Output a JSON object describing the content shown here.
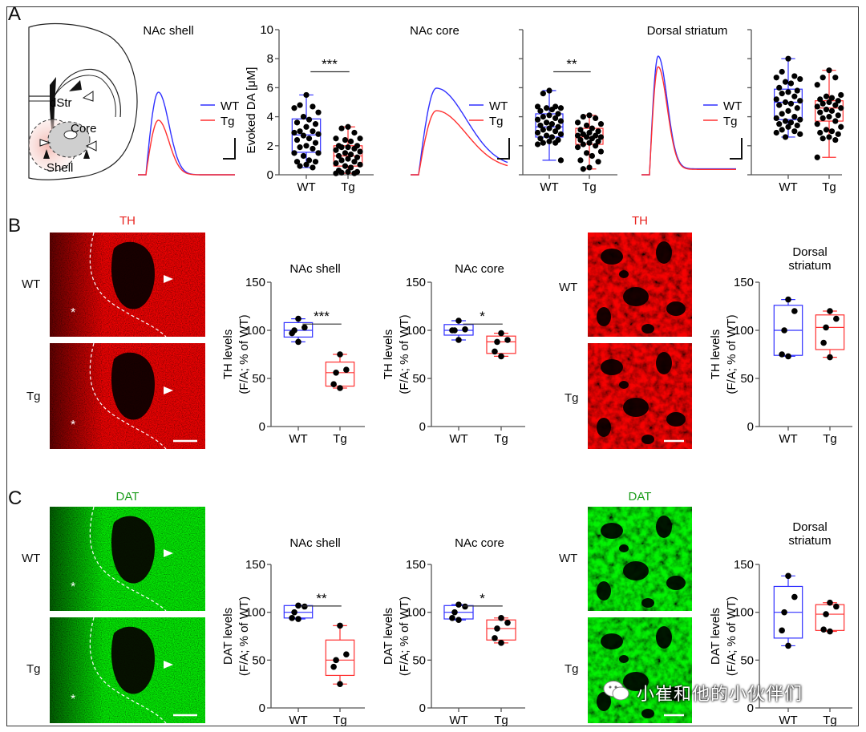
{
  "panels": {
    "A": {
      "letter": "A",
      "diagram": {
        "labels": [
          "dStr",
          "Core",
          "Shell"
        ]
      },
      "traces": [
        {
          "title": "NAc shell",
          "legend": [
            "WT",
            "Tg"
          ],
          "relative_peak": {
            "WT": 1.0,
            "Tg": 0.66
          },
          "decay": "fast"
        },
        {
          "title": "NAc core",
          "legend": [
            "WT",
            "Tg"
          ],
          "relative_peak": {
            "WT": 1.0,
            "Tg": 0.74
          },
          "decay": "slow"
        },
        {
          "title": "Dorsal striatum",
          "legend": [
            "WT",
            "Tg"
          ],
          "relative_peak": {
            "WT": 1.0,
            "Tg": 0.91
          },
          "decay": "fast"
        }
      ]
    },
    "B": {
      "letter": "B",
      "stain": "TH",
      "stain_color": "#e8231f",
      "rows": [
        "WT",
        "Tg"
      ],
      "rows_right": [
        "WT",
        "Tg"
      ]
    },
    "C": {
      "letter": "C",
      "stain": "DAT",
      "stain_color": "#1e9e1e",
      "rows": [
        "WT",
        "Tg"
      ],
      "rows_right": [
        "WT",
        "Tg"
      ]
    }
  },
  "colors": {
    "WT": "#3030ff",
    "Tg": "#ff3030",
    "points": "#000000"
  },
  "watermark": "小崔和他的小伙伴们",
  "chart_data": [
    {
      "type": "box",
      "panel": "A",
      "title": "",
      "ylabel": "Evoked DA [μM]",
      "ylim": [
        0,
        10
      ],
      "yticks": [
        0,
        2,
        4,
        6,
        8,
        10
      ],
      "ytick_labels": [
        "0",
        "2",
        "4",
        "6",
        "8",
        "10"
      ],
      "categories": [
        "WT",
        "Tg"
      ],
      "significance": "***",
      "series": [
        {
          "name": "WT",
          "box": [
            0.5,
            1.55,
            2.75,
            3.85,
            5.5
          ],
          "points": [
            5.5,
            4.8,
            4.7,
            4.6,
            4.3,
            4.0,
            3.8,
            3.6,
            3.5,
            3.3,
            3.0,
            3.0,
            2.9,
            2.8,
            2.7,
            2.5,
            2.4,
            2.2,
            2.0,
            1.9,
            1.8,
            1.5,
            1.5,
            1.3,
            1.0,
            0.9,
            0.9,
            0.7,
            0.6,
            0.5
          ]
        },
        {
          "name": "Tg",
          "box": [
            0.1,
            0.6,
            1.3,
            2.0,
            3.3
          ],
          "points": [
            3.3,
            3.2,
            2.9,
            2.5,
            2.5,
            2.4,
            2.3,
            2.0,
            2.0,
            1.9,
            1.9,
            1.8,
            1.7,
            1.6,
            1.5,
            1.4,
            1.3,
            1.2,
            1.1,
            1.0,
            0.9,
            0.8,
            0.7,
            0.6,
            0.5,
            0.3,
            0.2,
            0.2,
            0.15,
            0.1,
            0.1
          ]
        }
      ]
    },
    {
      "type": "box",
      "panel": "A",
      "title": "",
      "ylabel": "",
      "ylim": [
        0,
        10
      ],
      "yticks": [
        0,
        2,
        4,
        6,
        8,
        10
      ],
      "ytick_labels": [],
      "categories": [
        "WT",
        "Tg"
      ],
      "significance": "**",
      "series": [
        {
          "name": "WT",
          "box": [
            1.0,
            2.6,
            3.3,
            4.2,
            5.8
          ],
          "points": [
            5.8,
            5.6,
            4.7,
            4.7,
            4.6,
            4.6,
            4.5,
            4.4,
            4.2,
            4.1,
            4.0,
            3.9,
            3.8,
            3.7,
            3.6,
            3.5,
            3.4,
            3.3,
            3.2,
            3.1,
            3.0,
            2.9,
            2.8,
            2.7,
            2.6,
            2.5,
            2.4,
            2.3,
            2.2,
            2.2,
            2.1,
            1.0
          ]
        },
        {
          "name": "Tg",
          "box": [
            0.4,
            2.1,
            2.6,
            3.2,
            4.1
          ],
          "points": [
            4.1,
            4.0,
            3.9,
            3.6,
            3.5,
            3.4,
            3.2,
            3.1,
            3.0,
            2.9,
            2.8,
            2.7,
            2.7,
            2.6,
            2.6,
            2.5,
            2.4,
            2.3,
            2.2,
            2.1,
            2.0,
            1.9,
            1.6,
            1.5,
            1.3,
            1.0,
            0.9,
            0.5,
            0.4
          ]
        }
      ]
    },
    {
      "type": "box",
      "panel": "A",
      "title": "",
      "ylabel": "",
      "ylim": [
        0,
        10
      ],
      "yticks": [
        0,
        2,
        4,
        6,
        8,
        10
      ],
      "ytick_labels": [],
      "categories": [
        "WT",
        "Tg"
      ],
      "significance": "",
      "series": [
        {
          "name": "WT",
          "box": [
            2.6,
            3.8,
            5.0,
            5.9,
            8.0
          ],
          "points": [
            8.0,
            7.1,
            6.8,
            6.7,
            6.6,
            6.4,
            6.3,
            6.0,
            5.8,
            5.7,
            5.6,
            5.4,
            5.2,
            5.1,
            5.0,
            4.9,
            4.8,
            4.6,
            4.4,
            4.2,
            4.0,
            3.9,
            3.8,
            3.7,
            3.6,
            3.5,
            3.4,
            3.3,
            3.1,
            3.0,
            2.9,
            2.8,
            2.6
          ]
        },
        {
          "name": "Tg",
          "box": [
            1.2,
            3.7,
            4.6,
            5.1,
            7.2
          ],
          "points": [
            7.2,
            6.7,
            6.7,
            6.2,
            5.5,
            5.4,
            5.3,
            5.2,
            5.1,
            5.0,
            4.9,
            4.8,
            4.7,
            4.6,
            4.5,
            4.4,
            4.3,
            4.1,
            4.0,
            3.9,
            3.7,
            3.5,
            3.3,
            3.1,
            3.0,
            2.9,
            2.8,
            2.6,
            2.5,
            2.4,
            1.2
          ]
        }
      ]
    },
    {
      "type": "box",
      "panel": "B",
      "title": "NAc shell",
      "ylabel": [
        "TH levels",
        "(F/A; % of WT)"
      ],
      "ylim": [
        0,
        150
      ],
      "yticks": [
        0,
        50,
        100,
        150
      ],
      "ytick_labels": [
        "0",
        "50",
        "100",
        "150"
      ],
      "categories": [
        "WT",
        "Tg"
      ],
      "significance": "***",
      "series": [
        {
          "name": "WT",
          "box": [
            88,
            93,
            100,
            108,
            112
          ],
          "points": [
            112,
            103,
            100,
            97,
            88
          ]
        },
        {
          "name": "Tg",
          "box": [
            40,
            42,
            56,
            67,
            75
          ],
          "points": [
            75,
            59,
            56,
            44,
            40
          ]
        }
      ]
    },
    {
      "type": "box",
      "panel": "B",
      "title": "NAc core",
      "ylabel": [
        "TH levels",
        "(F/A; % of WT)"
      ],
      "ylim": [
        0,
        150
      ],
      "yticks": [
        0,
        50,
        100,
        150
      ],
      "ytick_labels": [
        "0",
        "50",
        "100",
        "150"
      ],
      "categories": [
        "WT",
        "Tg"
      ],
      "significance": "*",
      "series": [
        {
          "name": "WT",
          "box": [
            90,
            95,
            100,
            106,
            110
          ],
          "points": [
            110,
            101,
            100,
            100,
            90
          ]
        },
        {
          "name": "Tg",
          "box": [
            73,
            76,
            88,
            94,
            97
          ],
          "points": [
            97,
            90,
            88,
            78,
            73
          ]
        }
      ]
    },
    {
      "type": "box",
      "panel": "B",
      "title": [
        "Dorsal",
        "striatum"
      ],
      "ylabel": [
        "TH levels",
        "(F/A; % of WT)"
      ],
      "ylim": [
        0,
        150
      ],
      "yticks": [
        0,
        50,
        100,
        150
      ],
      "ytick_labels": [
        "0",
        "50",
        "100",
        "150"
      ],
      "categories": [
        "WT",
        "Tg"
      ],
      "significance": "",
      "series": [
        {
          "name": "WT",
          "box": [
            73,
            74,
            100,
            126,
            132
          ],
          "points": [
            132,
            120,
            100,
            75,
            73
          ]
        },
        {
          "name": "Tg",
          "box": [
            72,
            80,
            103,
            116,
            120
          ],
          "points": [
            120,
            112,
            103,
            87,
            72
          ]
        }
      ]
    },
    {
      "type": "box",
      "panel": "C",
      "title": "NAc shell",
      "ylabel": [
        "DAT levels",
        "(F/A; % of WT)"
      ],
      "ylim": [
        0,
        150
      ],
      "yticks": [
        0,
        50,
        100,
        150
      ],
      "ytick_labels": [
        "0",
        "50",
        "100",
        "150"
      ],
      "categories": [
        "WT",
        "Tg"
      ],
      "significance": "**",
      "series": [
        {
          "name": "WT",
          "box": [
            93,
            94,
            100,
            107,
            107
          ],
          "points": [
            107,
            106,
            100,
            94,
            93
          ]
        },
        {
          "name": "Tg",
          "box": [
            25,
            34,
            50,
            71,
            86
          ],
          "points": [
            86,
            56,
            50,
            43,
            25
          ]
        }
      ]
    },
    {
      "type": "box",
      "panel": "C",
      "title": "NAc core",
      "ylabel": [
        "DAT levels",
        "(F/A; % of WT)"
      ],
      "ylim": [
        0,
        150
      ],
      "yticks": [
        0,
        50,
        100,
        150
      ],
      "ytick_labels": [
        "0",
        "50",
        "100",
        "150"
      ],
      "categories": [
        "WT",
        "Tg"
      ],
      "significance": "*",
      "series": [
        {
          "name": "WT",
          "box": [
            92,
            93,
            100,
            107,
            108
          ],
          "points": [
            108,
            106,
            100,
            94,
            92
          ]
        },
        {
          "name": "Tg",
          "box": [
            68,
            71,
            83,
            92,
            94
          ],
          "points": [
            94,
            89,
            83,
            73,
            68
          ]
        }
      ]
    },
    {
      "type": "box",
      "panel": "C",
      "title": [
        "Dorsal",
        "striatum"
      ],
      "ylabel": [
        "DAT levels",
        "(F/A; % of WT)"
      ],
      "ylim": [
        0,
        150
      ],
      "yticks": [
        0,
        50,
        100,
        150
      ],
      "ytick_labels": [
        "0",
        "50",
        "100",
        "150"
      ],
      "categories": [
        "WT",
        "Tg"
      ],
      "significance": "",
      "series": [
        {
          "name": "WT",
          "box": [
            65,
            73,
            100,
            127,
            138
          ],
          "points": [
            138,
            116,
            100,
            81,
            65
          ]
        },
        {
          "name": "Tg",
          "box": [
            80,
            81,
            98,
            108,
            110
          ],
          "points": [
            110,
            106,
            98,
            82,
            80
          ]
        }
      ]
    }
  ]
}
